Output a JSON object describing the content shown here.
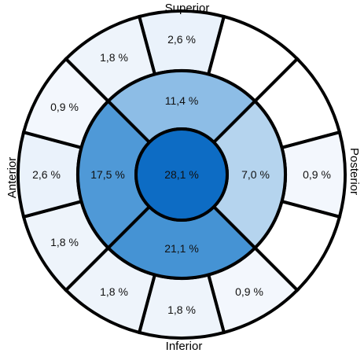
{
  "orientation": {
    "superior": "Superior",
    "inferior": "Inferior",
    "anterior": "Anterior",
    "posterior": "Posterior"
  },
  "center": {
    "label": "28,1 %",
    "value": 28.1,
    "color": "#0d6cc4"
  },
  "inner_ring": [
    {
      "position": "superior",
      "label": "11,4 %",
      "value": 11.4,
      "color": "#8dbde6"
    },
    {
      "position": "posterior",
      "label": "7,0 %",
      "value": 7.0,
      "color": "#b5d4ee"
    },
    {
      "position": "inferior",
      "label": "21,1 %",
      "value": 21.1,
      "color": "#4593d4"
    },
    {
      "position": "anterior",
      "label": "17,5 %",
      "value": 17.5,
      "color": "#4f99d7"
    }
  ],
  "outer_ring": [
    {
      "position": "superior",
      "label": "2,6 %",
      "value": 2.6,
      "color": "#eaf2fb"
    },
    {
      "position": "superior-posterior",
      "label": "",
      "value": null,
      "color": "#ffffff"
    },
    {
      "position": "posterior-superior",
      "label": "",
      "value": null,
      "color": "#ffffff"
    },
    {
      "position": "posterior",
      "label": "0,9 %",
      "value": 0.9,
      "color": "#f3f7fd"
    },
    {
      "position": "posterior-inferior",
      "label": "",
      "value": null,
      "color": "#ffffff"
    },
    {
      "position": "inferior-posterior",
      "label": "0,9 %",
      "value": 0.9,
      "color": "#f3f7fd"
    },
    {
      "position": "inferior",
      "label": "1,8 %",
      "value": 1.8,
      "color": "#eef4fb"
    },
    {
      "position": "inferior-anterior",
      "label": "1,8 %",
      "value": 1.8,
      "color": "#eef4fb"
    },
    {
      "position": "anterior-inferior",
      "label": "1,8 %",
      "value": 1.8,
      "color": "#eef4fb"
    },
    {
      "position": "anterior",
      "label": "2,6 %",
      "value": 2.6,
      "color": "#eaf2fb"
    },
    {
      "position": "anterior-superior",
      "label": "0,9 %",
      "value": 0.9,
      "color": "#f3f7fd"
    },
    {
      "position": "superior-anterior",
      "label": "1,8 %",
      "value": 1.8,
      "color": "#eef4fb"
    }
  ]
}
